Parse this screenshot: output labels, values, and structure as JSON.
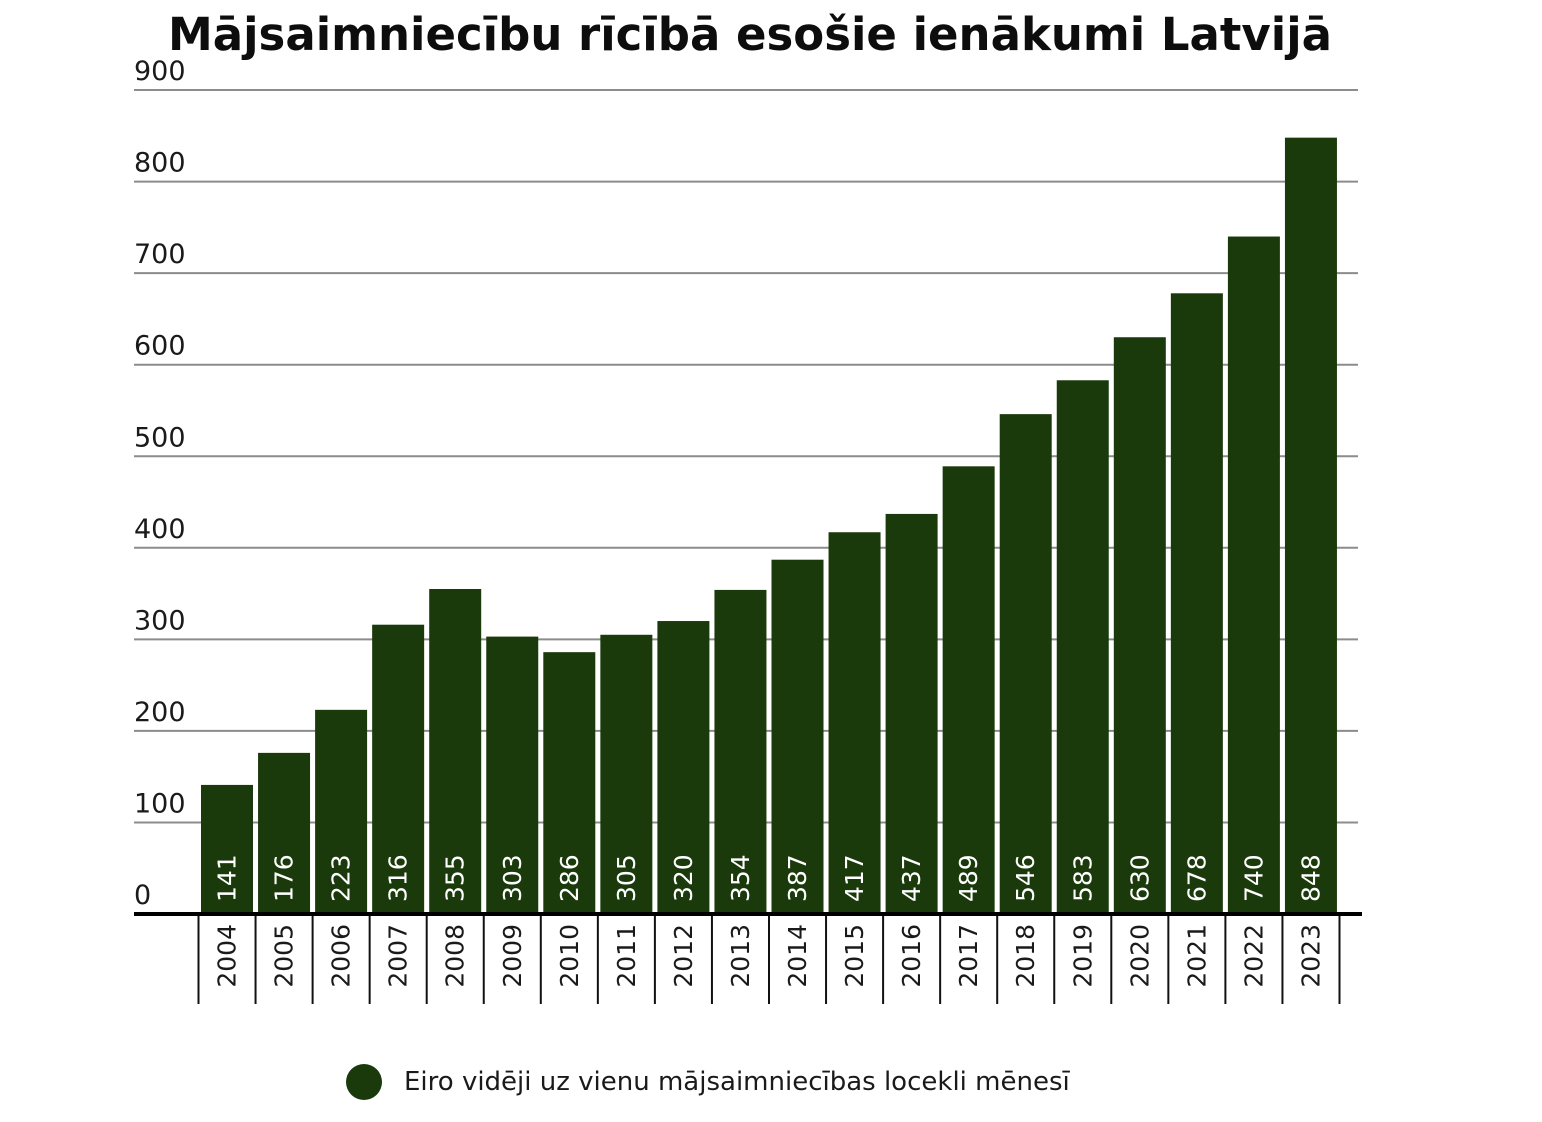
{
  "chart_data": {
    "type": "bar",
    "title": "Mājsaimniecību rīcībā esošie ienākumi Latvijā",
    "xlabel": "",
    "ylabel": "",
    "ylim": [
      0,
      900
    ],
    "yticks": [
      "0",
      "100",
      "200",
      "300",
      "400",
      "500",
      "600",
      "700",
      "800",
      "900"
    ],
    "grid": true,
    "legend_position": "bottom",
    "bar_color": "#1b3a0b",
    "categories": [
      "2004",
      "2005",
      "2006",
      "2007",
      "2008",
      "2009",
      "2010",
      "2011",
      "2012",
      "2013",
      "2014",
      "2015",
      "2016",
      "2017",
      "2018",
      "2019",
      "2020",
      "2021",
      "2022",
      "2023"
    ],
    "series": [
      {
        "name": "Eiro vidēji uz vienu mājsaimniecības locekli mēnesī",
        "values": [
          141,
          176,
          223,
          316,
          355,
          303,
          286,
          305,
          320,
          354,
          387,
          417,
          437,
          489,
          546,
          583,
          630,
          678,
          740,
          848
        ]
      }
    ]
  }
}
